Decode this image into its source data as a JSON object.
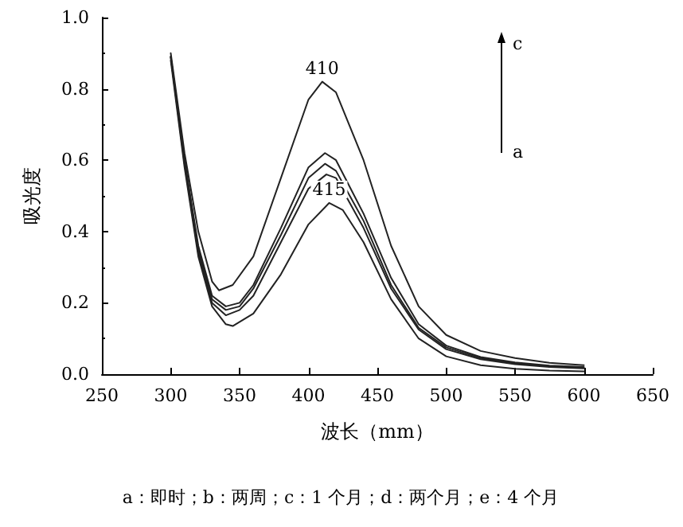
{
  "chart_data": {
    "type": "line",
    "xlabel": "波长（mm）",
    "ylabel": "吸光度",
    "xlim": [
      250,
      650
    ],
    "xticks": [
      250,
      300,
      350,
      400,
      450,
      500,
      550,
      600,
      650
    ],
    "ylim": [
      0,
      1
    ],
    "yticks": [
      {
        "value": 0,
        "label": "0.0"
      },
      {
        "value": 0.2,
        "label": "0.2"
      },
      {
        "value": 0.4,
        "label": "0.4"
      },
      {
        "value": 0.6,
        "label": "0.6"
      },
      {
        "value": 0.8,
        "label": "0.8"
      },
      {
        "value": 1,
        "label": "1.0"
      }
    ],
    "grid": false,
    "marker": "none",
    "line_style": "solid",
    "series": [
      {
        "color": "#222222",
        "x": [
          300,
          310,
          320,
          330,
          335,
          345,
          360,
          380,
          400,
          410,
          420,
          440,
          460,
          480,
          500,
          525,
          550,
          575,
          600
        ],
        "values": [
          0.9,
          0.62,
          0.4,
          0.26,
          0.235,
          0.25,
          0.33,
          0.55,
          0.77,
          0.82,
          0.79,
          0.6,
          0.36,
          0.19,
          0.11,
          0.065,
          0.045,
          0.032,
          0.025
        ]
      },
      {
        "color": "#222222",
        "x": [
          300,
          310,
          320,
          330,
          340,
          350,
          360,
          380,
          400,
          412,
          420,
          440,
          460,
          480,
          500,
          525,
          550,
          575,
          600
        ],
        "values": [
          0.89,
          0.6,
          0.36,
          0.22,
          0.19,
          0.2,
          0.25,
          0.41,
          0.58,
          0.62,
          0.6,
          0.45,
          0.27,
          0.14,
          0.08,
          0.048,
          0.033,
          0.024,
          0.02
        ]
      },
      {
        "color": "#222222",
        "x": [
          300,
          310,
          320,
          330,
          340,
          350,
          360,
          380,
          400,
          412,
          420,
          440,
          460,
          480,
          500,
          525,
          550,
          575,
          600
        ],
        "values": [
          0.89,
          0.6,
          0.35,
          0.21,
          0.18,
          0.19,
          0.24,
          0.39,
          0.55,
          0.59,
          0.57,
          0.43,
          0.25,
          0.13,
          0.075,
          0.045,
          0.03,
          0.022,
          0.018
        ]
      },
      {
        "color": "#222222",
        "x": [
          300,
          310,
          320,
          330,
          340,
          350,
          360,
          380,
          400,
          413,
          420,
          440,
          460,
          480,
          500,
          525,
          550,
          575,
          600
        ],
        "values": [
          0.89,
          0.59,
          0.34,
          0.2,
          0.165,
          0.18,
          0.22,
          0.37,
          0.52,
          0.56,
          0.55,
          0.41,
          0.24,
          0.125,
          0.07,
          0.042,
          0.028,
          0.02,
          0.016
        ]
      },
      {
        "color": "#222222",
        "x": [
          300,
          310,
          320,
          330,
          340,
          345,
          360,
          380,
          400,
          415,
          425,
          440,
          460,
          480,
          500,
          525,
          550,
          575,
          600
        ],
        "values": [
          0.88,
          0.58,
          0.33,
          0.19,
          0.14,
          0.135,
          0.17,
          0.28,
          0.42,
          0.48,
          0.46,
          0.37,
          0.21,
          0.1,
          0.05,
          0.025,
          0.015,
          0.01,
          0.008
        ]
      }
    ],
    "annotations": [
      {
        "text": "410",
        "x": 410,
        "y": 0.82
      },
      {
        "text": "415",
        "x": 415,
        "y": 0.48
      },
      "c",
      "a",
      "a：即时；b：两周；c：1 个月；d：两个月；e：4 个月"
    ]
  }
}
